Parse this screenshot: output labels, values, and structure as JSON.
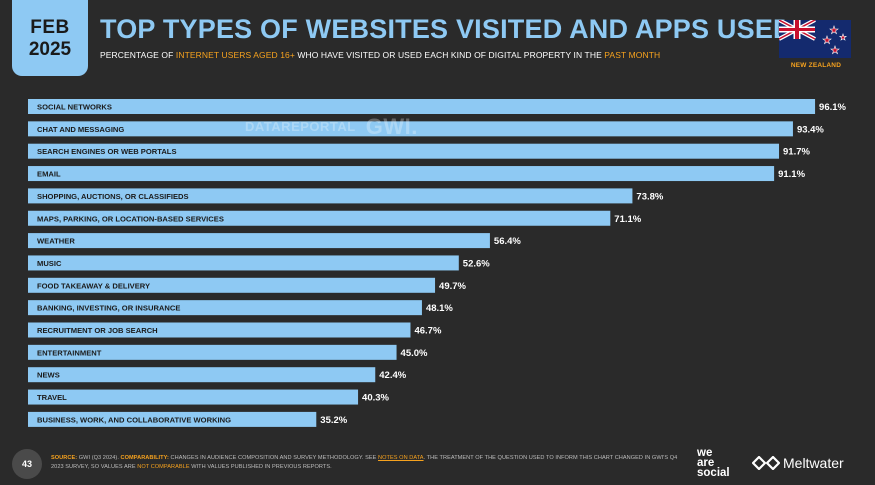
{
  "header": {
    "month": "FEB",
    "year": "2025",
    "title": "TOP TYPES OF WEBSITES VISITED AND APPS USED",
    "subtitle": {
      "p1": "PERCENTAGE OF ",
      "h1": "INTERNET USERS AGED 16+",
      "p2": " WHO HAVE VISITED OR USED EACH KIND OF DIGITAL PROPERTY IN THE ",
      "h2": "PAST MONTH"
    },
    "country": "NEW ZEALAND"
  },
  "watermark": {
    "datareportal": "DATAREPORTAL",
    "gwi": "GWI."
  },
  "colors": {
    "bar": "#8ec9f3",
    "accent": "#f6a21e",
    "background": "#2a2a2a",
    "bar_text": "#1a1a1a"
  },
  "chart_data": {
    "type": "bar",
    "orientation": "horizontal",
    "categories": [
      "SOCIAL NETWORKS",
      "CHAT AND MESSAGING",
      "SEARCH ENGINES OR WEB PORTALS",
      "EMAIL",
      "SHOPPING, AUCTIONS, OR CLASSIFIEDS",
      "MAPS, PARKING, OR LOCATION-BASED SERVICES",
      "WEATHER",
      "MUSIC",
      "FOOD TAKEAWAY & DELIVERY",
      "BANKING, INVESTING, OR INSURANCE",
      "RECRUITMENT OR JOB SEARCH",
      "ENTERTAINMENT",
      "NEWS",
      "TRAVEL",
      "BUSINESS, WORK, AND COLLABORATIVE WORKING"
    ],
    "values": [
      96.1,
      93.4,
      91.7,
      91.1,
      73.8,
      71.1,
      56.4,
      52.6,
      49.7,
      48.1,
      46.7,
      45.0,
      42.4,
      40.3,
      35.2
    ],
    "labels": [
      "96.1%",
      "93.4%",
      "91.7%",
      "91.1%",
      "73.8%",
      "71.1%",
      "56.4%",
      "52.6%",
      "49.7%",
      "48.1%",
      "46.7%",
      "45.0%",
      "42.4%",
      "40.3%",
      "35.2%"
    ],
    "xlim": [
      0,
      100
    ]
  },
  "footer": {
    "page": "43",
    "source_label": "SOURCE:",
    "source_text": " GWI (Q3 2024). ",
    "comparability_label": "COMPARABILITY:",
    "text1": " CHANGES IN AUDIENCE COMPOSITION AND SURVEY METHODOLOGY. SEE ",
    "notes_link": "NOTES ON DATA",
    "text2": ". THE TREATMENT OF THE QUESTION USED TO INFORM THIS CHART CHANGED IN GWI'S Q4 2023 SURVEY, SO VALUES ARE ",
    "not_comparable": "NOT COMPARABLE",
    "text3": " WITH VALUES PUBLISHED IN PREVIOUS REPORTS.",
    "logo_we": "we",
    "logo_are": "are",
    "logo_social": "social",
    "logo_meltwater": "Meltwater"
  }
}
